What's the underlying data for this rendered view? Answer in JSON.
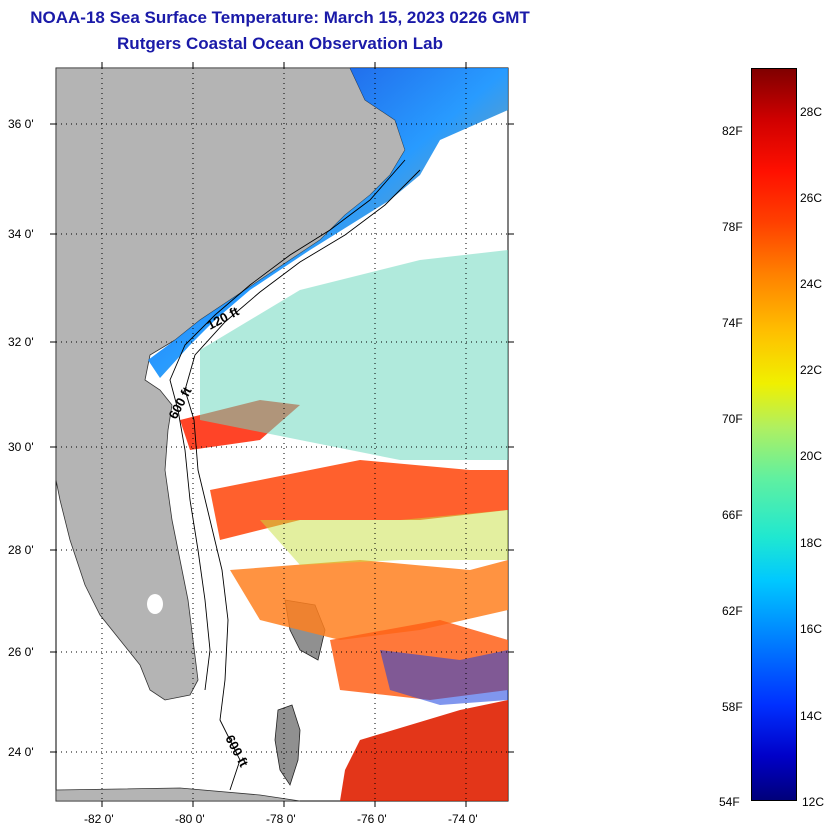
{
  "title": {
    "line1": "NOAA-18 Sea Surface Temperature:  March 15, 2023 0226 GMT",
    "line2": "Rutgers Coastal Ocean Observation Lab"
  },
  "map": {
    "lat_labels": [
      "36 0'",
      "34 0'",
      "32 0'",
      "30 0'",
      "28 0'",
      "26 0'",
      "24 0'"
    ],
    "lon_labels": [
      "-82 0'",
      "-80 0'",
      "-78 0'",
      "-76 0'",
      "-74 0'"
    ],
    "contours": [
      "120 ft",
      "600 ft",
      "600 ft"
    ],
    "land_color": "#b4b4b4"
  },
  "colorbar": {
    "fahrenheit": [
      "82F",
      "78F",
      "74F",
      "70F",
      "66F",
      "62F",
      "58F",
      "54F"
    ],
    "celsius": [
      "28C",
      "26C",
      "24C",
      "22C",
      "20C",
      "18C",
      "16C",
      "14C",
      "12C"
    ]
  }
}
